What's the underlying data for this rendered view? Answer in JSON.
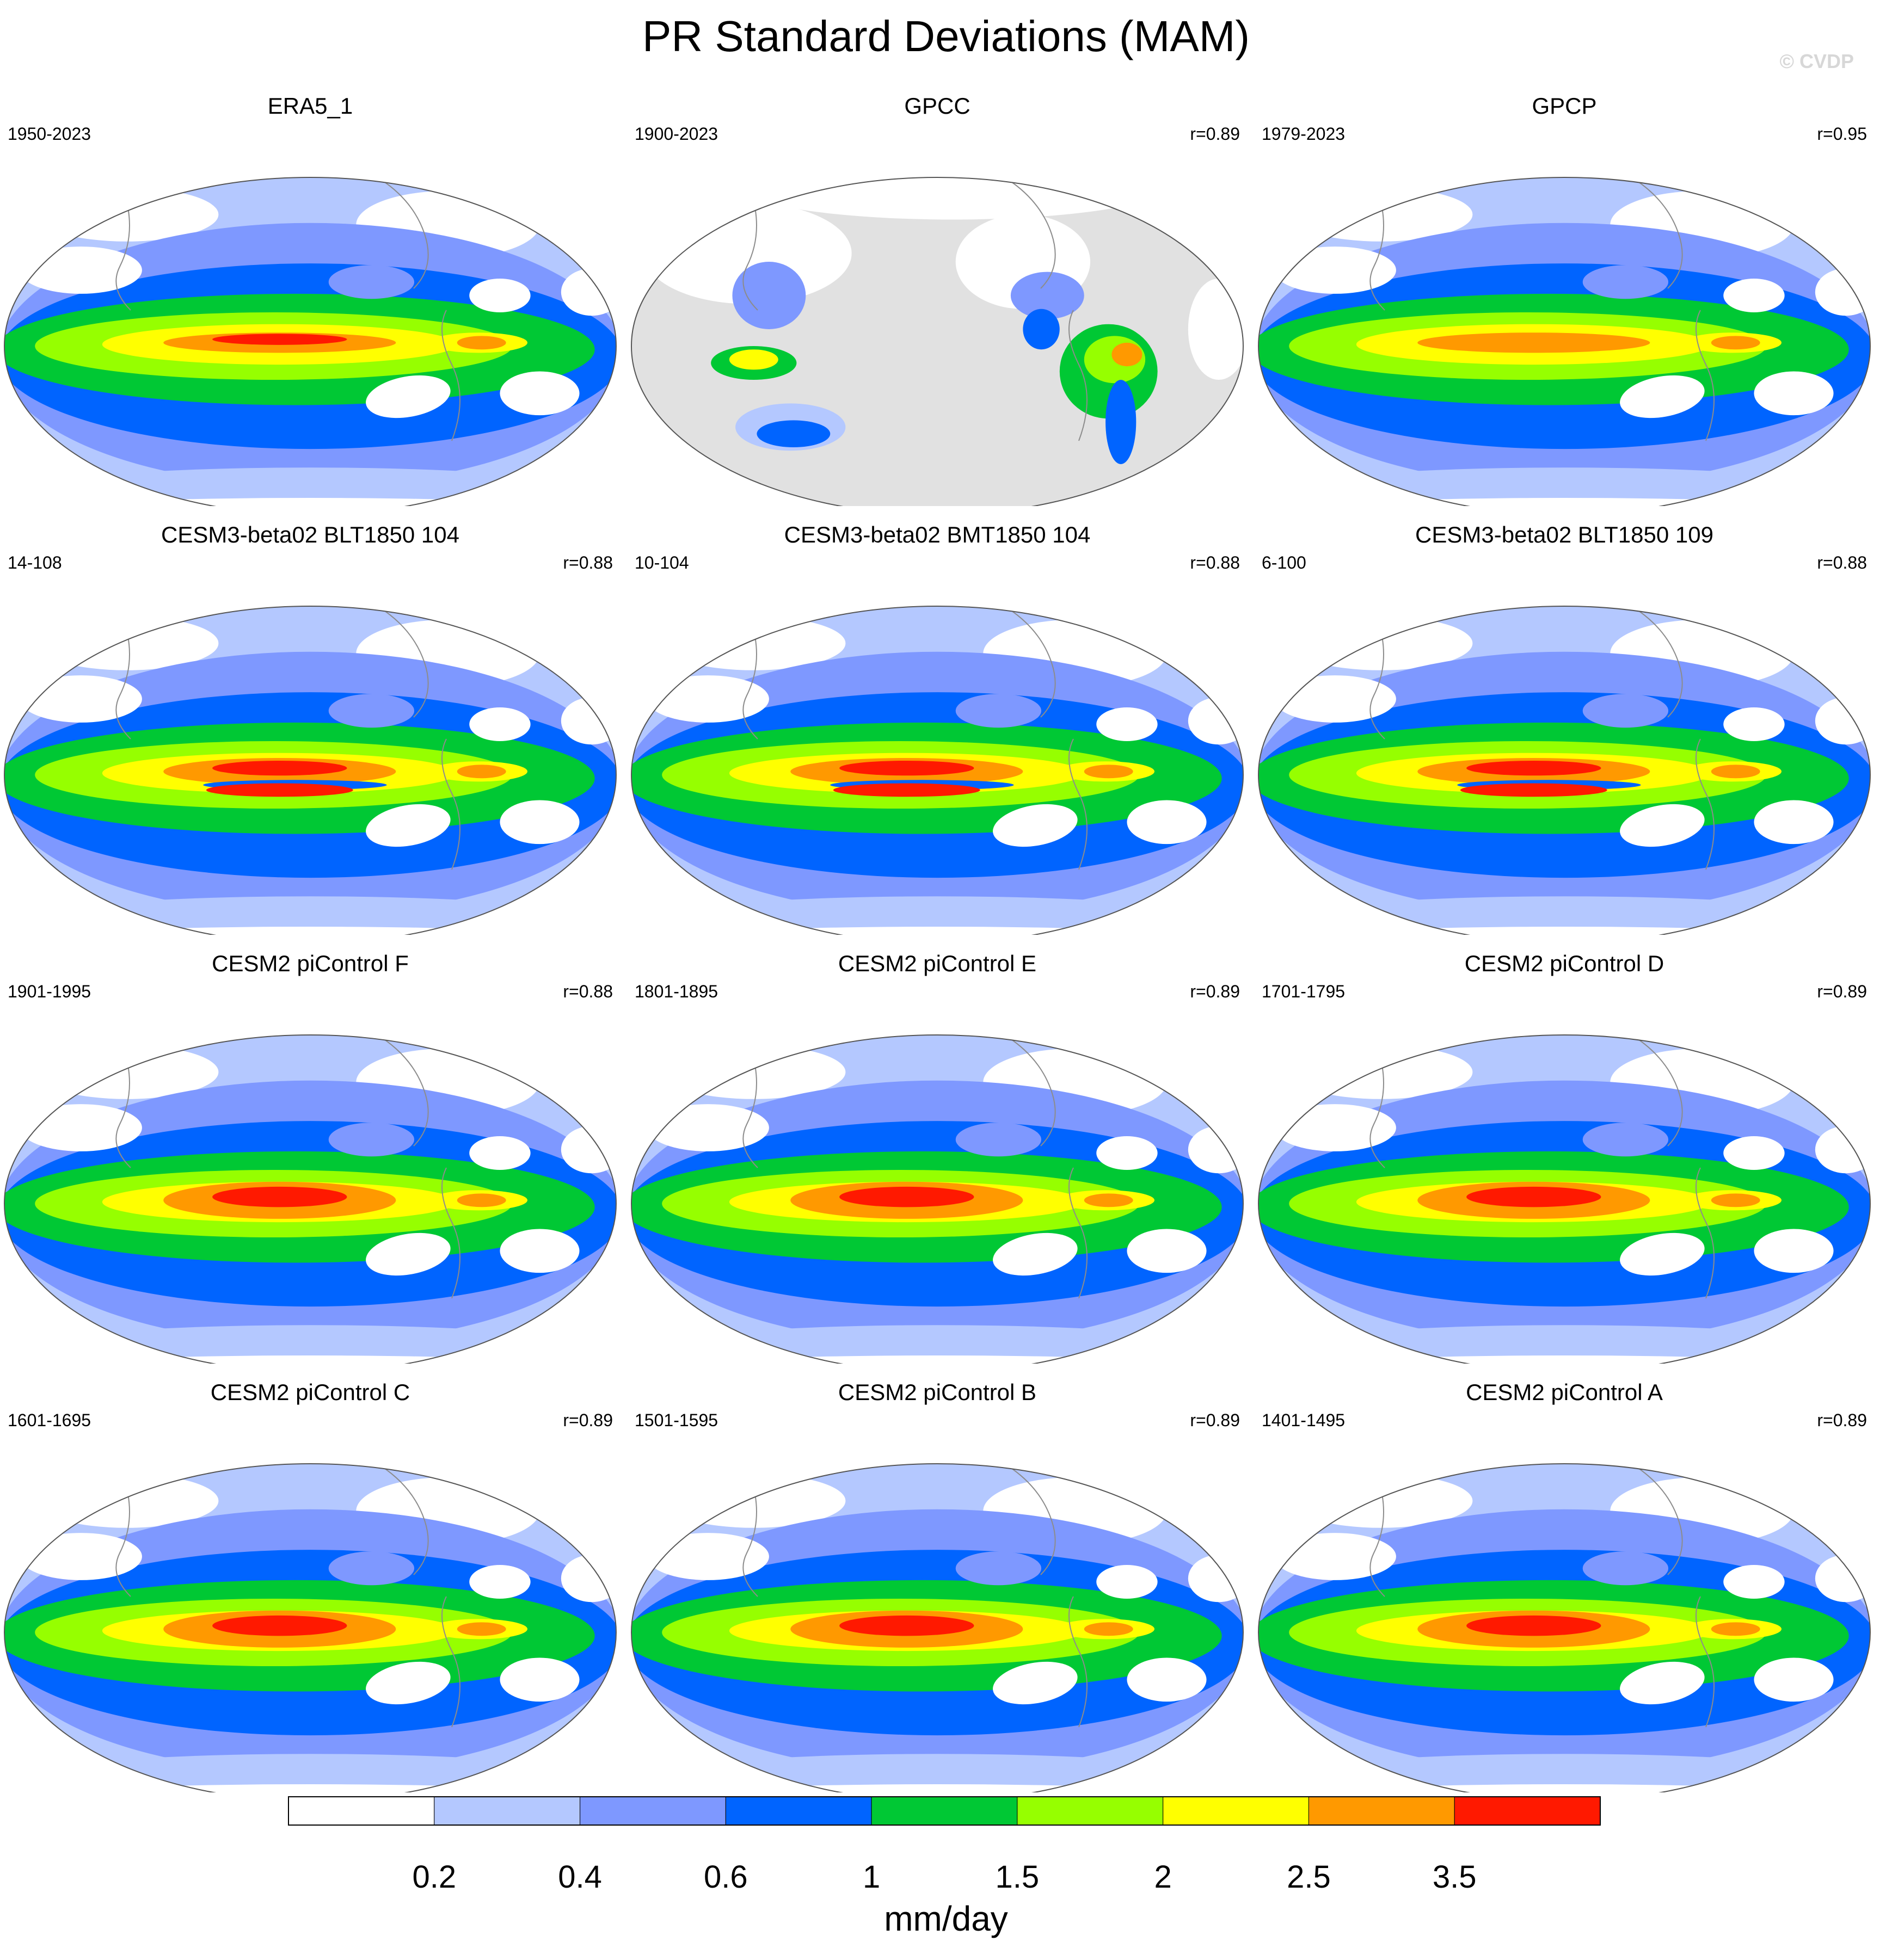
{
  "title": "PR Standard Deviations (MAM)",
  "watermark": "© CVDP",
  "chart_data": {
    "type": "heatmap",
    "title": "PR Standard Deviations (MAM)",
    "colorbar": {
      "levels": [
        "0.2",
        "0.4",
        "0.6",
        "1",
        "1.5",
        "2",
        "2.5",
        "3.5"
      ],
      "colors": [
        "#ffffff",
        "#b4c8ff",
        "#7e98ff",
        "#0064ff",
        "#00c834",
        "#96ff00",
        "#ffff00",
        "#ff9900",
        "#ff1900"
      ],
      "units": "mm/day"
    },
    "panels": [
      {
        "name": "ERA5_1",
        "years": "1950-2023",
        "r": "",
        "kind": "obs"
      },
      {
        "name": "GPCC",
        "years": "1900-2023",
        "r": "r=0.89",
        "kind": "land"
      },
      {
        "name": "GPCP",
        "years": "1979-2023",
        "r": "r=0.95",
        "kind": "obs"
      },
      {
        "name": "CESM3-beta02 BLT1850 104",
        "years": "14-108",
        "r": "r=0.88",
        "kind": "model"
      },
      {
        "name": "CESM3-beta02 BMT1850 104",
        "years": "10-104",
        "r": "r=0.88",
        "kind": "model"
      },
      {
        "name": "CESM3-beta02 BLT1850 109",
        "years": "6-100",
        "r": "r=0.88",
        "kind": "model"
      },
      {
        "name": "CESM2 piControl F",
        "years": "1901-1995",
        "r": "r=0.88",
        "kind": "ctrl"
      },
      {
        "name": "CESM2 piControl E",
        "years": "1801-1895",
        "r": "r=0.89",
        "kind": "ctrl"
      },
      {
        "name": "CESM2 piControl D",
        "years": "1701-1795",
        "r": "r=0.89",
        "kind": "ctrl"
      },
      {
        "name": "CESM2 piControl C",
        "years": "1601-1695",
        "r": "r=0.89",
        "kind": "ctrl"
      },
      {
        "name": "CESM2 piControl B",
        "years": "1501-1595",
        "r": "r=0.89",
        "kind": "ctrl"
      },
      {
        "name": "CESM2 piControl A",
        "years": "1401-1495",
        "r": "r=0.89",
        "kind": "ctrl"
      }
    ]
  }
}
